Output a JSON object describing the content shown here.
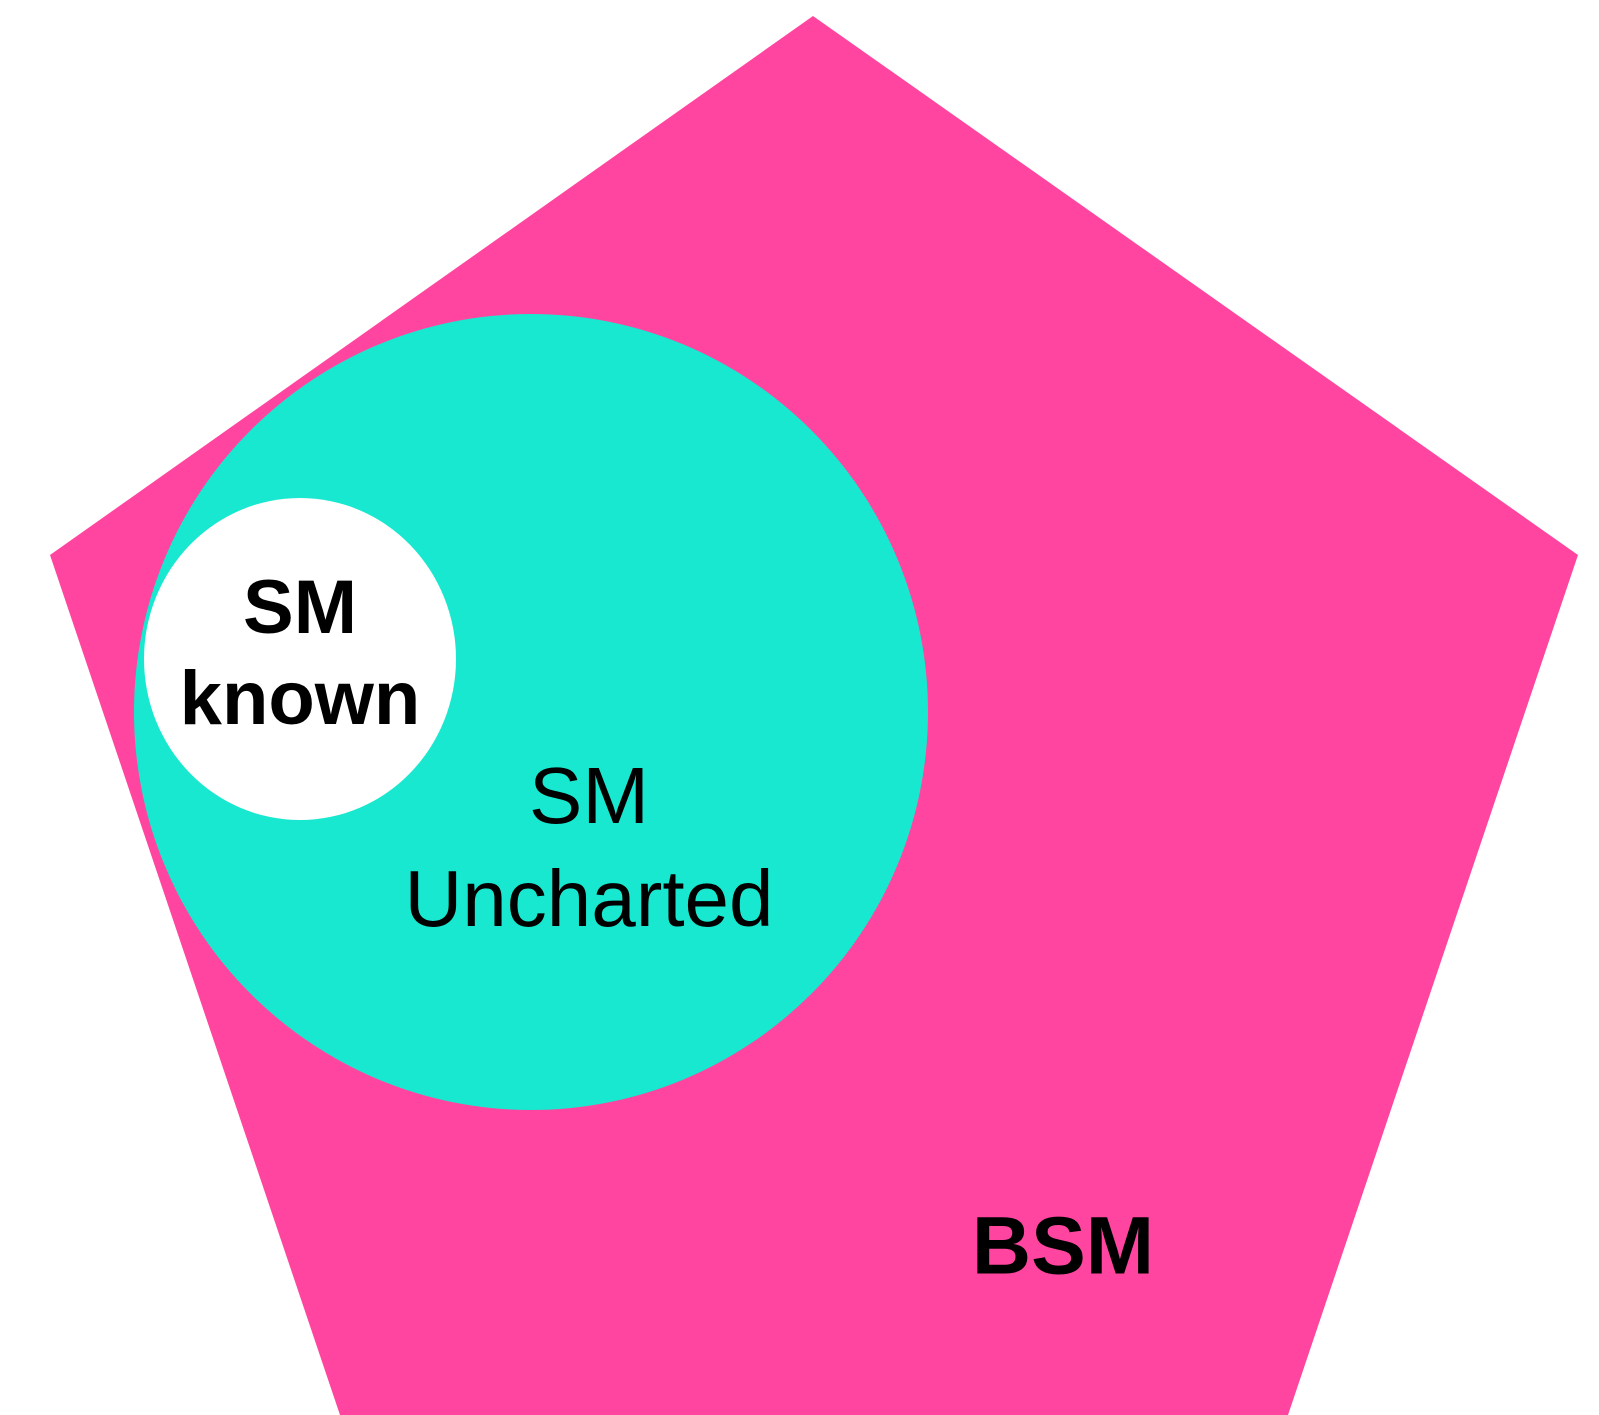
{
  "regions": [
    {
      "label_lines": [
        "BSM"
      ]
    },
    {
      "label_lines": [
        "SM",
        "Uncharted"
      ]
    },
    {
      "label_lines": [
        "SM",
        "known"
      ]
    }
  ]
}
